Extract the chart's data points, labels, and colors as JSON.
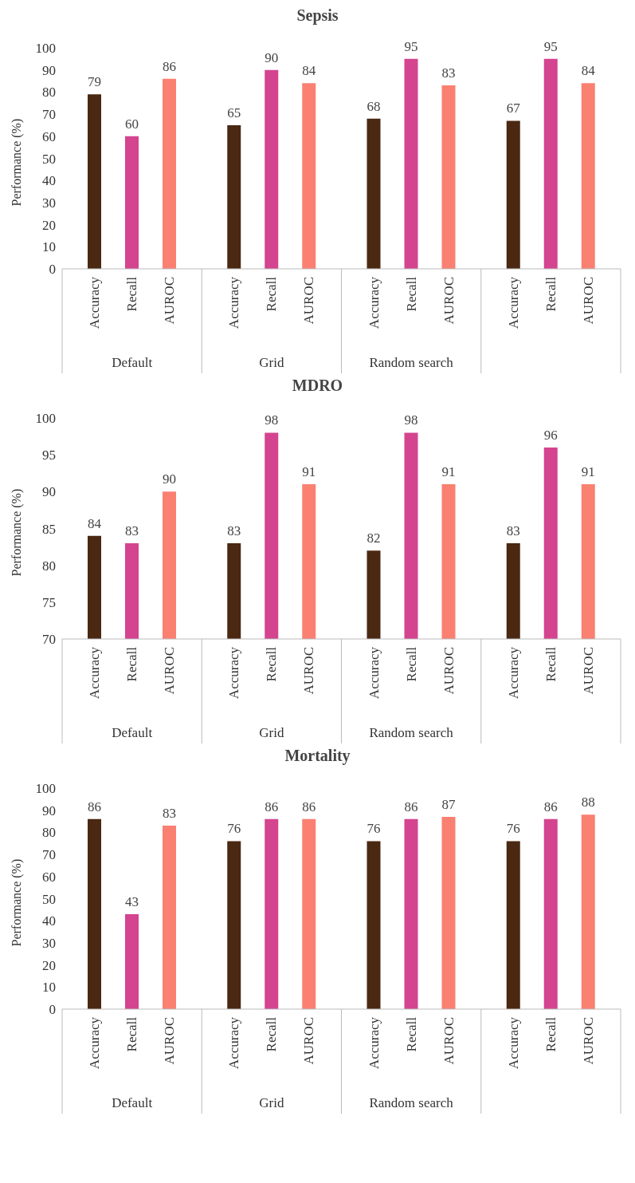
{
  "chart_data": [
    {
      "type": "bar",
      "title": "Sepsis",
      "ylabel": "Performance (%)",
      "categories": [
        "Default",
        "Grid",
        "Random search",
        null
      ],
      "ylim": [
        0,
        100
      ],
      "yticks": [
        0,
        10,
        20,
        30,
        40,
        50,
        60,
        70,
        80,
        90,
        100
      ],
      "data_labels": true,
      "series": [
        {
          "name": "Accuracy",
          "color": "#4a2812",
          "values": [
            79,
            65,
            68,
            67
          ]
        },
        {
          "name": "Recall",
          "color": "#d4448f",
          "values": [
            60,
            90,
            95,
            95
          ]
        },
        {
          "name": "AUROC",
          "color": "#fa8072",
          "values": [
            86,
            84,
            83,
            84
          ]
        }
      ]
    },
    {
      "type": "bar",
      "title": "MDRO",
      "ylabel": "Performance (%)",
      "categories": [
        "Default",
        "Grid",
        "Random search",
        null
      ],
      "ylim": [
        70,
        100
      ],
      "yticks": [
        70,
        75,
        80,
        85,
        90,
        95,
        100
      ],
      "data_labels": true,
      "series": [
        {
          "name": "Accuracy",
          "color": "#4a2812",
          "values": [
            84,
            83,
            82,
            83
          ]
        },
        {
          "name": "Recall",
          "color": "#d4448f",
          "values": [
            83,
            98,
            98,
            96
          ]
        },
        {
          "name": "AUROC",
          "color": "#fa8072",
          "values": [
            90,
            91,
            91,
            91
          ]
        }
      ]
    },
    {
      "type": "bar",
      "title": "Mortality",
      "ylabel": "Performance (%)",
      "categories": [
        "Default",
        "Grid",
        "Random search",
        null
      ],
      "ylim": [
        0,
        100
      ],
      "yticks": [
        0,
        10,
        20,
        30,
        40,
        50,
        60,
        70,
        80,
        90,
        100
      ],
      "data_labels": true,
      "series": [
        {
          "name": "Accuracy",
          "color": "#4a2812",
          "values": [
            86,
            76,
            76,
            76
          ]
        },
        {
          "name": "Recall",
          "color": "#d4448f",
          "values": [
            43,
            86,
            86,
            86
          ]
        },
        {
          "name": "AUROC",
          "color": "#fa8072",
          "values": [
            83,
            86,
            87,
            88
          ]
        }
      ]
    }
  ]
}
